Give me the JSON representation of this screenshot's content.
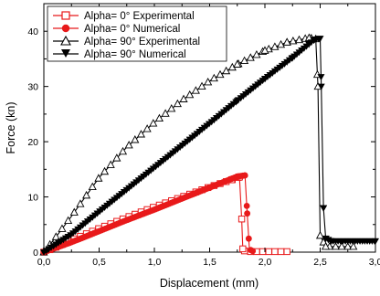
{
  "chart_data": {
    "type": "line",
    "xlabel": "Displacement (mm)",
    "ylabel": "Force (kn)",
    "xlim": [
      0.0,
      3.0
    ],
    "ylim": [
      0,
      45
    ],
    "x_ticks": [
      0.0,
      0.5,
      1.0,
      1.5,
      2.0,
      2.5,
      3.0
    ],
    "x_tick_labels": [
      "0,0",
      "0,5",
      "1,0",
      "1,5",
      "2,0",
      "2,5",
      "3,0"
    ],
    "y_ticks": [
      0,
      10,
      20,
      30,
      40
    ],
    "y_tick_labels": [
      "0",
      "10",
      "20",
      "30",
      "40"
    ],
    "grid": false,
    "legend_position": "top-left",
    "series": [
      {
        "name": "Alpha= 0° Experimental",
        "color": "#e8191a",
        "marker": "open-square",
        "marker_step": 0.055,
        "points": [
          [
            0.0,
            0.0
          ],
          [
            0.1,
            0.8
          ],
          [
            0.25,
            2.2
          ],
          [
            0.5,
            4.3
          ],
          [
            0.75,
            6.3
          ],
          [
            1.0,
            8.2
          ],
          [
            1.25,
            10.0
          ],
          [
            1.5,
            11.8
          ],
          [
            1.7,
            13.1
          ],
          [
            1.77,
            13.6
          ],
          [
            1.79,
            6.0
          ],
          [
            1.8,
            0.6
          ],
          [
            1.82,
            0.1
          ],
          [
            2.2,
            0.1
          ]
        ]
      },
      {
        "name": "Alpha= 0° Numerical",
        "color": "#e8191a",
        "marker": "filled-circle",
        "marker_step": 0.018,
        "points": [
          [
            0.0,
            0.0
          ],
          [
            0.25,
            1.8
          ],
          [
            0.5,
            3.8
          ],
          [
            0.75,
            5.8
          ],
          [
            1.0,
            7.7
          ],
          [
            1.25,
            9.7
          ],
          [
            1.5,
            11.7
          ],
          [
            1.7,
            13.3
          ],
          [
            1.75,
            13.7
          ],
          [
            1.82,
            13.9
          ],
          [
            1.84,
            7.0
          ],
          [
            1.86,
            0.5
          ],
          [
            1.9,
            0.1
          ]
        ]
      },
      {
        "name": "Alpha= 90° Experimental",
        "color": "#000000",
        "marker": "open-triangle-up",
        "marker_step": 0.055,
        "points": [
          [
            0.0,
            0.0
          ],
          [
            0.1,
            2.5
          ],
          [
            0.25,
            6.5
          ],
          [
            0.5,
            13.5
          ],
          [
            0.75,
            19.0
          ],
          [
            1.0,
            23.5
          ],
          [
            1.25,
            27.5
          ],
          [
            1.5,
            31.0
          ],
          [
            1.75,
            34.0
          ],
          [
            2.0,
            36.5
          ],
          [
            2.2,
            38.0
          ],
          [
            2.4,
            38.8
          ],
          [
            2.46,
            38.6
          ],
          [
            2.48,
            30.0
          ],
          [
            2.5,
            3.0
          ],
          [
            2.55,
            1.0
          ],
          [
            2.8,
            1.0
          ]
        ]
      },
      {
        "name": "Alpha= 90° Numerical",
        "color": "#000000",
        "marker": "filled-triangle-down",
        "marker_step": 0.022,
        "points": [
          [
            0.0,
            0.0
          ],
          [
            0.25,
            3.2
          ],
          [
            0.5,
            7.3
          ],
          [
            0.75,
            11.3
          ],
          [
            1.0,
            15.3
          ],
          [
            1.25,
            19.3
          ],
          [
            1.5,
            23.3
          ],
          [
            1.75,
            27.4
          ],
          [
            2.0,
            31.4
          ],
          [
            2.25,
            35.2
          ],
          [
            2.45,
            38.5
          ],
          [
            2.5,
            38.7
          ],
          [
            2.51,
            30.0
          ],
          [
            2.53,
            8.0
          ],
          [
            2.55,
            2.5
          ],
          [
            2.6,
            2.0
          ],
          [
            3.0,
            2.0
          ]
        ]
      }
    ]
  }
}
